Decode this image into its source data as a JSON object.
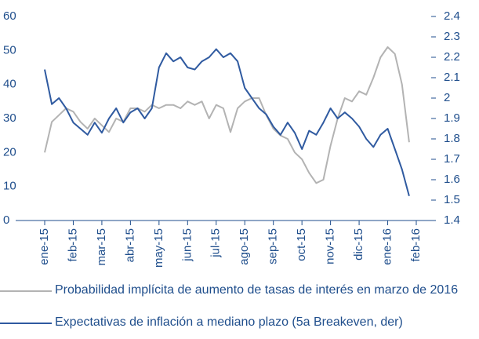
{
  "chart_data": {
    "type": "line",
    "x": [
      0,
      0.25,
      0.5,
      0.75,
      1,
      1.25,
      1.5,
      1.75,
      2,
      2.25,
      2.5,
      2.75,
      3,
      3.25,
      3.5,
      3.75,
      4,
      4.25,
      4.5,
      4.75,
      5,
      5.25,
      5.5,
      5.75,
      6,
      6.25,
      6.5,
      6.75,
      7,
      7.25,
      7.5,
      7.75,
      8,
      8.25,
      8.5,
      8.75,
      9,
      9.25,
      9.5,
      9.75,
      10,
      10.25,
      10.5,
      10.75,
      11,
      11.25,
      11.5,
      11.75,
      12,
      12.25,
      12.5,
      12.75
    ],
    "series": [
      {
        "name": "Probabilidad implícita de aumento de tasas de interés en marzo de 2016",
        "color": "#b3b3b3",
        "values": [
          20,
          29,
          31,
          33,
          32,
          29,
          27,
          30,
          28,
          26,
          30,
          29,
          33,
          33,
          32,
          34,
          33,
          34,
          34,
          33,
          35,
          34,
          35,
          30,
          34,
          33,
          26,
          33,
          35,
          36,
          36,
          31,
          27,
          25,
          24,
          20,
          18,
          14,
          11,
          12,
          22,
          30,
          36,
          35,
          38,
          37,
          42,
          48,
          51,
          49,
          40,
          23
        ]
      },
      {
        "name": "Expectativas de inflación a mediano plazo (5a Breakeven, der)",
        "color": "#2f5aa0",
        "axis": "y2",
        "values": [
          2.14,
          1.97,
          2.0,
          1.95,
          1.88,
          1.85,
          1.82,
          1.88,
          1.83,
          1.9,
          1.95,
          1.88,
          1.93,
          1.95,
          1.9,
          1.95,
          2.15,
          2.22,
          2.18,
          2.2,
          2.15,
          2.14,
          2.18,
          2.2,
          2.24,
          2.2,
          2.22,
          2.18,
          2.05,
          2.0,
          1.95,
          1.92,
          1.86,
          1.82,
          1.88,
          1.83,
          1.75,
          1.84,
          1.82,
          1.88,
          1.95,
          1.9,
          1.93,
          1.9,
          1.86,
          1.8,
          1.76,
          1.82,
          1.85,
          1.75,
          1.65,
          1.52
        ]
      }
    ],
    "xlim": [
      0,
      13
    ],
    "xticks": [
      {
        "value": 0,
        "label": "ene-15"
      },
      {
        "value": 1,
        "label": "feb-15"
      },
      {
        "value": 2,
        "label": "mar-15"
      },
      {
        "value": 3,
        "label": "abr-15"
      },
      {
        "value": 4,
        "label": "may-15"
      },
      {
        "value": 5,
        "label": "jun-15"
      },
      {
        "value": 6,
        "label": "jul-15"
      },
      {
        "value": 7,
        "label": "ago-15"
      },
      {
        "value": 8,
        "label": "sep-15"
      },
      {
        "value": 9,
        "label": "oct-15"
      },
      {
        "value": 10,
        "label": "nov-15"
      },
      {
        "value": 11,
        "label": "dic-15"
      },
      {
        "value": 12,
        "label": "ene-16"
      },
      {
        "value": 13,
        "label": "feb-16"
      }
    ],
    "ylim": [
      0,
      60
    ],
    "yticks": [
      0,
      10,
      20,
      30,
      40,
      50,
      60
    ],
    "y2lim": [
      1.4,
      2.4
    ],
    "y2ticks": [
      1.4,
      1.5,
      1.6,
      1.7,
      1.8,
      1.9,
      2.0,
      2.1,
      2.2,
      2.3,
      2.4
    ]
  }
}
